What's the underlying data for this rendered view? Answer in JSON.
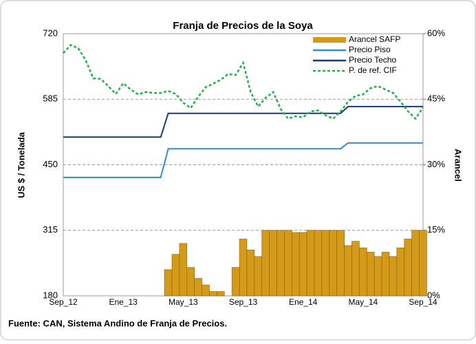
{
  "chart_data": {
    "type": "bar-line",
    "title": "Franja de Precios de la Soya",
    "y_label": "US $ / Tonelada",
    "y2_label": "Arancel",
    "source": "Fuente: CAN, Sistema Andino de Franja de Precios.",
    "categories": [
      "Sep_12",
      null,
      null,
      null,
      null,
      null,
      null,
      null,
      "Ene_13",
      null,
      null,
      null,
      null,
      null,
      null,
      null,
      "May_13",
      null,
      null,
      null,
      null,
      null,
      null,
      null,
      "Sep_13",
      null,
      null,
      null,
      null,
      null,
      null,
      null,
      "Ene_14",
      null,
      null,
      null,
      null,
      null,
      null,
      null,
      "May_14",
      null,
      null,
      null,
      null,
      null,
      null,
      null,
      "Sep_14"
    ],
    "ylim": [
      180,
      720
    ],
    "yticks": [
      180,
      315,
      450,
      585,
      720
    ],
    "y2lim": [
      0,
      60
    ],
    "y2ticks": [
      {
        "value": 0,
        "label": "0%"
      },
      {
        "value": 15,
        "label": "15%"
      },
      {
        "value": 30,
        "label": "30%"
      },
      {
        "value": 45,
        "label": "45%"
      },
      {
        "value": 60,
        "label": "60%"
      }
    ],
    "grid": true,
    "legend": "top-right",
    "series": [
      {
        "name": "Arancel SAFP",
        "type": "bar",
        "axis": "y2",
        "color": "#d49a1a",
        "values": [
          0,
          0,
          0,
          0,
          0,
          0,
          0,
          0,
          0,
          0,
          0,
          0,
          0,
          0,
          6,
          9.5,
          12,
          6.5,
          4,
          2.5,
          1,
          1,
          0,
          6.5,
          13,
          10.5,
          9,
          15,
          15,
          15,
          15,
          14.5,
          14.5,
          15,
          15,
          15,
          15,
          15,
          11.5,
          12.5,
          11,
          10,
          9,
          10,
          9,
          11,
          13,
          15,
          15
        ]
      },
      {
        "name": "Precio Piso",
        "type": "line",
        "color": "#2e8bd8",
        "marker": "diamond",
        "values": [
          424,
          424,
          424,
          424,
          424,
          424,
          424,
          424,
          424,
          424,
          424,
          424,
          424,
          424,
          483,
          483,
          483,
          483,
          483,
          483,
          483,
          483,
          483,
          483,
          483,
          483,
          483,
          483,
          483,
          483,
          483,
          483,
          483,
          483,
          483,
          483,
          483,
          483,
          495,
          495,
          495,
          495,
          495,
          495,
          495,
          495,
          495,
          495,
          495
        ]
      },
      {
        "name": "Precio Techo",
        "type": "line",
        "color": "#1a3a6e",
        "marker": "square",
        "values": [
          507,
          507,
          507,
          507,
          507,
          507,
          507,
          507,
          507,
          507,
          507,
          507,
          507,
          507,
          556,
          556,
          556,
          556,
          556,
          556,
          556,
          556,
          556,
          556,
          556,
          556,
          556,
          556,
          556,
          556,
          556,
          556,
          556,
          556,
          556,
          556,
          556,
          556,
          570,
          570,
          570,
          570,
          570,
          570,
          570,
          570,
          570,
          570,
          570
        ]
      },
      {
        "name": "P. de ref. CIF",
        "type": "line",
        "color": "#22b24c",
        "dashed": true,
        "values": [
          680,
          697,
          690,
          665,
          628,
          627,
          612,
          596,
          618,
          605,
          595,
          600,
          598,
          598,
          602,
          596,
          578,
          567,
          590,
          610,
          617,
          625,
          637,
          635,
          660,
          600,
          570,
          588,
          600,
          565,
          545,
          550,
          548,
          560,
          562,
          552,
          545,
          560,
          580,
          592,
          595,
          608,
          612,
          605,
          598,
          580,
          560,
          545,
          568
        ]
      }
    ]
  }
}
